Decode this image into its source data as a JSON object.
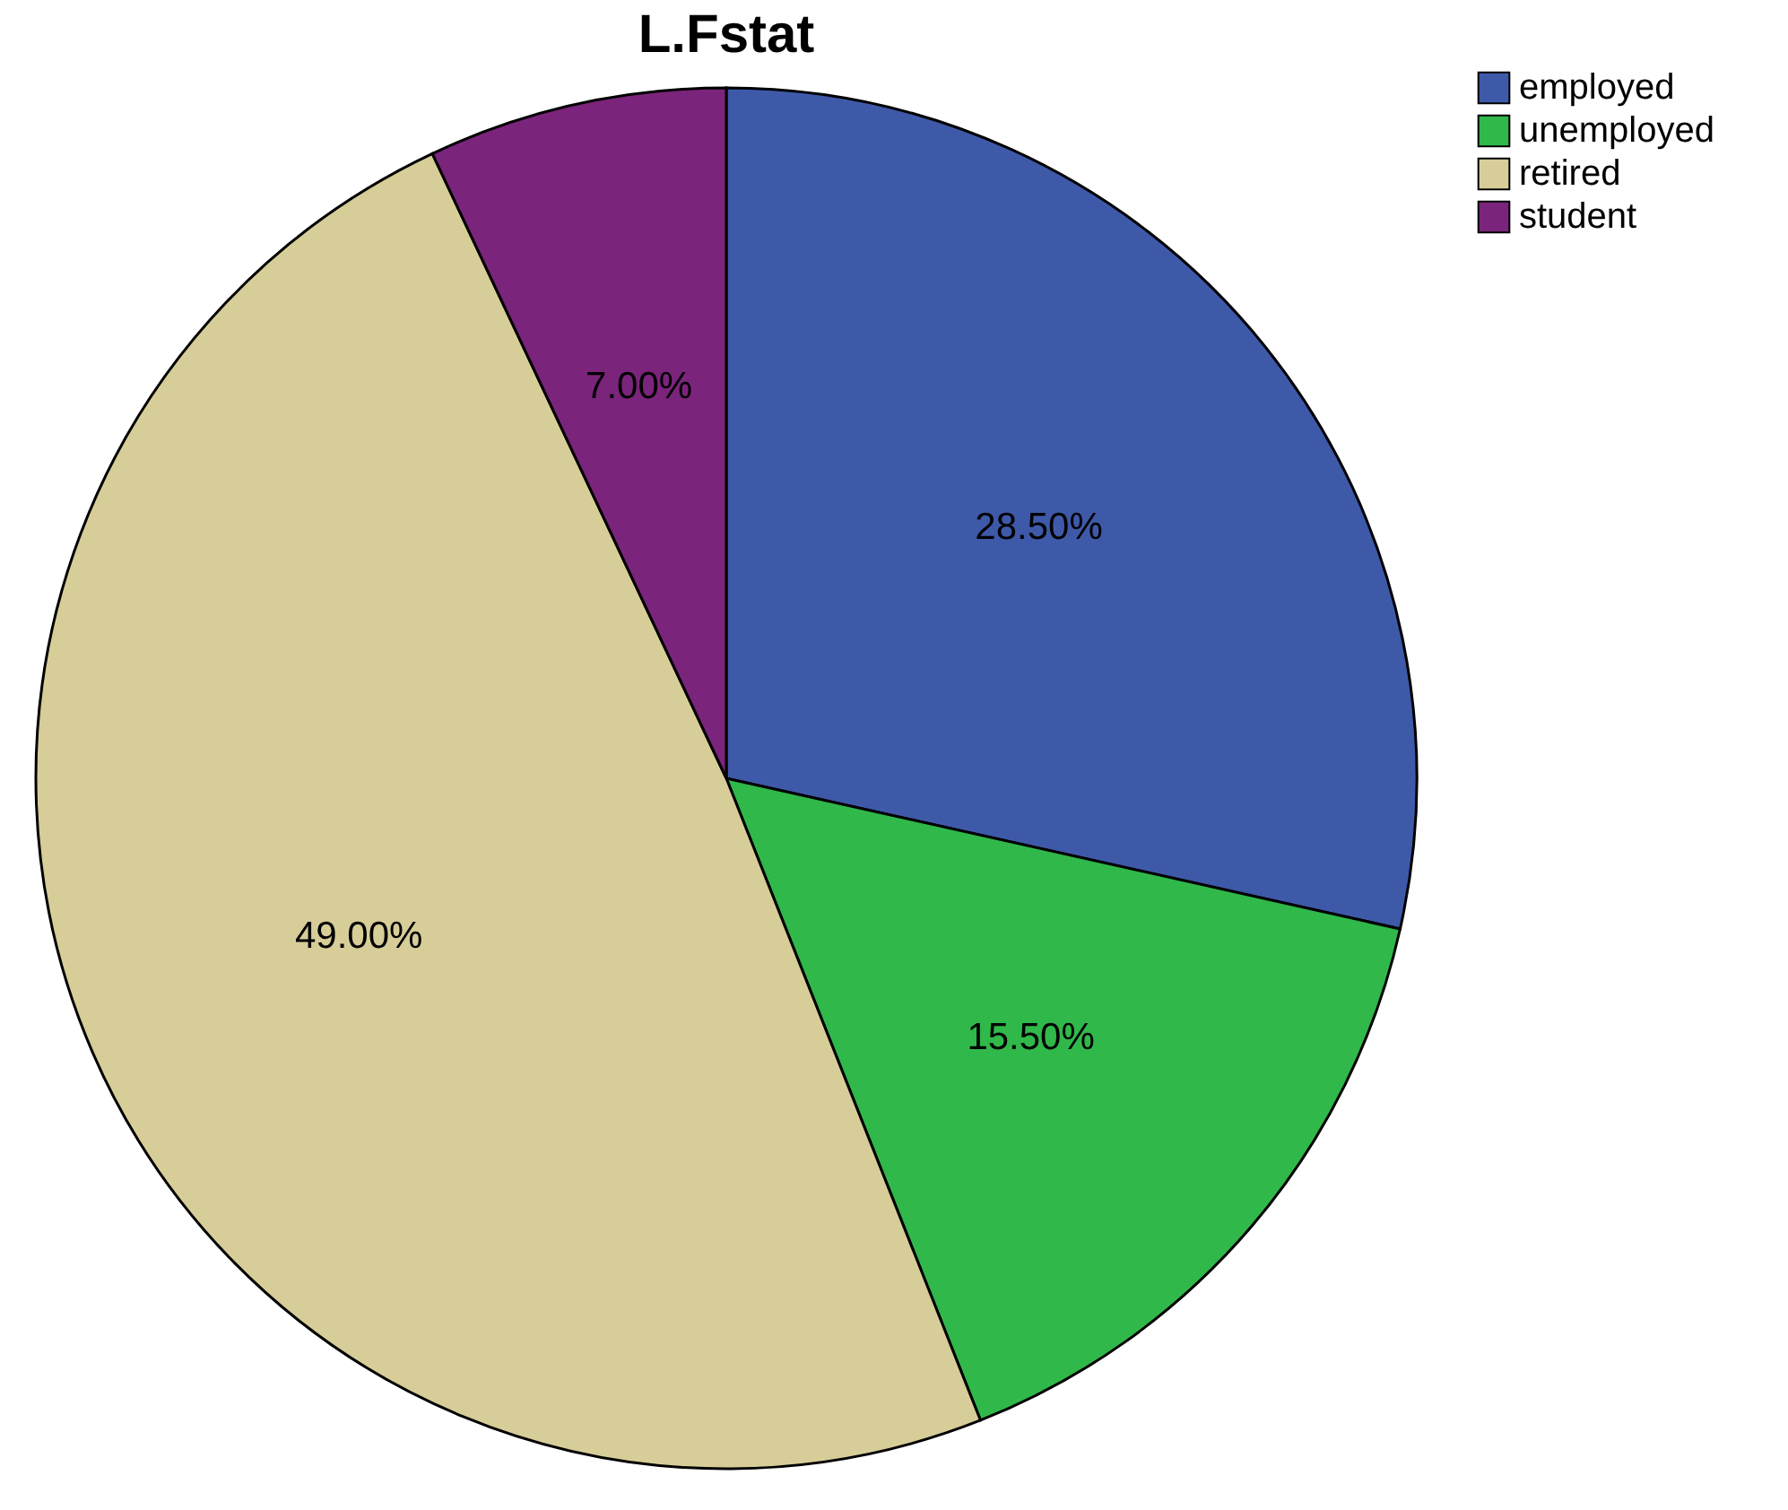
{
  "chart_data": {
    "type": "pie",
    "title": "L.Fstat",
    "categories": [
      "employed",
      "unemployed",
      "retired",
      "student"
    ],
    "values": [
      28.5,
      15.5,
      49.0,
      7.0
    ],
    "colors": [
      "#3f59a9",
      "#30b84a",
      "#d7cd98",
      "#7b247b"
    ],
    "value_labels": [
      "28.50%",
      "15.50%",
      "49.00%",
      "7.00%"
    ],
    "legend": "top right"
  }
}
